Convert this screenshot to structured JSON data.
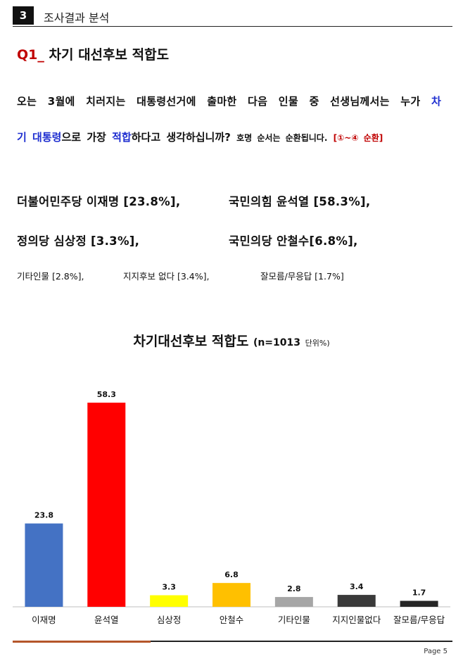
{
  "section": {
    "number": "3",
    "title": "조사결과 분석"
  },
  "question": {
    "number": "Q1_",
    "title": "차기 대선후보 적합도",
    "text_line1_a": "오는 3월에 치러지는 대통령선거에 출마한 다음 인물 중 선생님께서는 누가",
    "text_line1_b": "차",
    "text_line2_a": "기 대통령",
    "text_line2_b": "으로 가장",
    "text_line2_c": "적합",
    "text_line2_d": "하다고 생각하십니까?",
    "text_line2_note": "호명 순서는 순환됩니다.",
    "text_line2_red": "[①~④ 순환]"
  },
  "results": {
    "r1": "더불어민주당 이재명 [23.8%],",
    "r2": "국민의힘 윤석열 [58.3%],",
    "r3": "정의당 심상정 [3.3%],",
    "r4": "국민의당 안철수[6.8%],",
    "r5": "기타인물 [2.8%],",
    "r6": "지지후보 없다 [3.4%],",
    "r7": "잘모름/무응답 [1.7%]"
  },
  "chart_title": {
    "main": "차기대선후보 적합도",
    "sub": "(n=1013",
    "unit": "단위%)"
  },
  "chart_data": {
    "type": "bar",
    "title": "차기대선후보 적합도 (n=1013 단위%)",
    "categories": [
      "이재명",
      "윤석열",
      "심상정",
      "안철수",
      "기타인물",
      "지지인물없다",
      "잘모름/무응답"
    ],
    "values": [
      23.8,
      58.3,
      3.3,
      6.8,
      2.8,
      3.4,
      1.7
    ],
    "value_labels": [
      "23.8",
      "58.3",
      "3.3",
      "6.8",
      "2.8",
      "3.4",
      "1.7"
    ],
    "colors": [
      "#4472c4",
      "#ff0000",
      "#ffff00",
      "#ffc000",
      "#a6a6a6",
      "#3a3a3a",
      "#262626"
    ],
    "ylim": [
      0,
      58.3
    ],
    "xlabel": "",
    "ylabel": "",
    "grid": false
  },
  "footer": {
    "page": "Page 5"
  }
}
